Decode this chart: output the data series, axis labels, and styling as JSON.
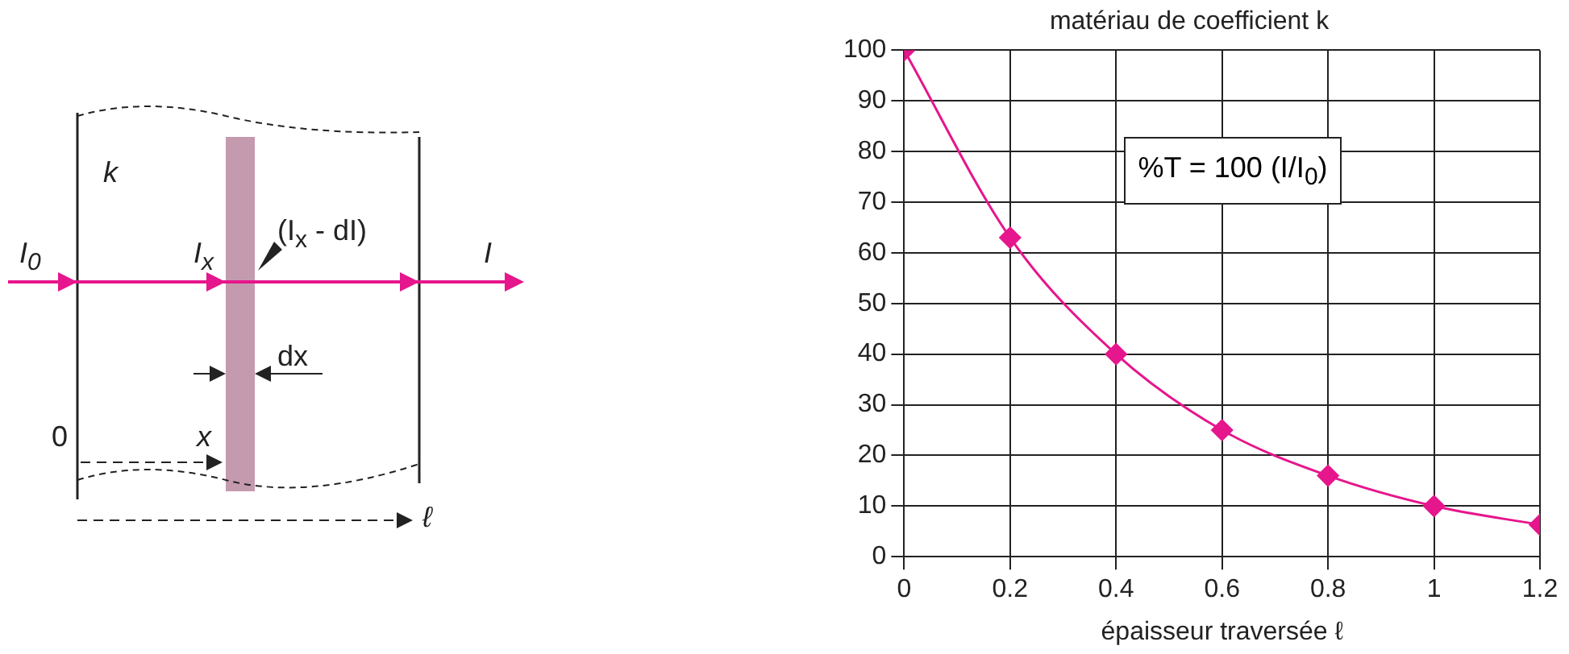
{
  "chart_data": {
    "type": "line",
    "title": "matériau de coefficient k",
    "xlabel": "épaisseur traversée ℓ",
    "x": [
      0,
      0.2,
      0.4,
      0.6,
      0.8,
      1,
      1.2
    ],
    "series": [
      {
        "color": "#e6168c",
        "values": [
          100,
          63,
          40,
          25,
          16,
          10,
          6.3
        ]
      }
    ],
    "xlim": [
      0,
      1.2
    ],
    "xticks": [
      0,
      0.2,
      0.4,
      0.6,
      0.8,
      1,
      1.2
    ],
    "ylim": [
      0,
      100
    ],
    "yticks": [
      0,
      10,
      20,
      30,
      40,
      50,
      60,
      70,
      80,
      90,
      100
    ],
    "grid": true,
    "marker": "diamond",
    "line_style": "solid",
    "legend": false,
    "annotations": [
      "%T = 100 (I/I$_{0}$)",
      "k",
      "I$_{0}$",
      "I$_{x}$",
      "(I$_{x}$ - dI)",
      "I",
      "dx",
      "x",
      "0",
      "ℓ"
    ]
  }
}
